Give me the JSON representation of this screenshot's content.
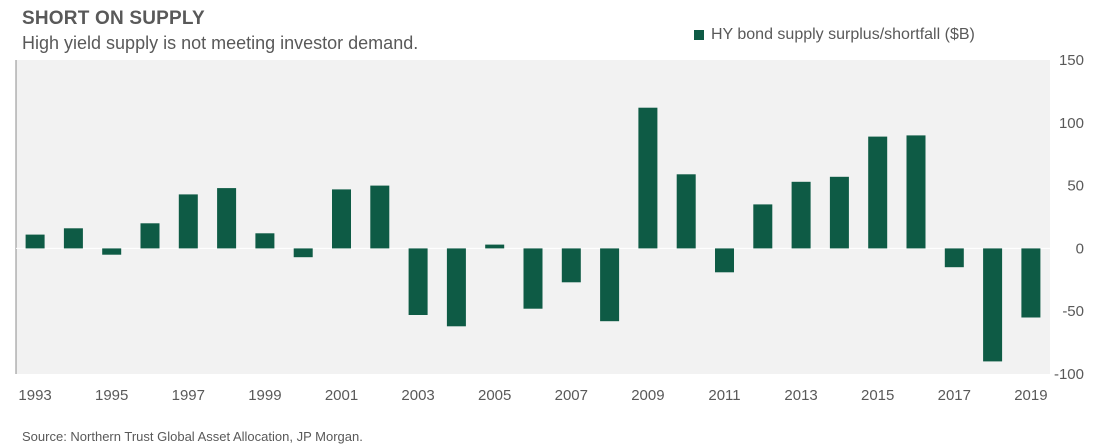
{
  "header": {
    "title": "SHORT ON SUPPLY",
    "subtitle": "High yield supply is not meeting investor demand."
  },
  "footer": {
    "source": "Source: Northern Trust Global Asset Allocation, JP Morgan."
  },
  "colors": {
    "bar": "#0e5b45",
    "plot_background": "#f2f2f2",
    "text": "#595959"
  },
  "chart_data": {
    "type": "bar",
    "title": "SHORT ON SUPPLY",
    "subtitle": "High yield supply is not meeting investor demand.",
    "xlabel": "",
    "ylabel": "",
    "categories": [
      "1993",
      "1994",
      "1995",
      "1996",
      "1997",
      "1998",
      "1999",
      "2000",
      "2001",
      "2002",
      "2003",
      "2004",
      "2005",
      "2006",
      "2007",
      "2008",
      "2009",
      "2010",
      "2011",
      "2012",
      "2013",
      "2014",
      "2015",
      "2016",
      "2017",
      "2018",
      "2019"
    ],
    "x_tick_labels": [
      "1993",
      "1995",
      "1997",
      "1999",
      "2001",
      "2003",
      "2005",
      "2007",
      "2009",
      "2011",
      "2013",
      "2015",
      "2017",
      "2019"
    ],
    "y_ticks": [
      150,
      100,
      50,
      0,
      -50,
      -100
    ],
    "ylim": [
      -100,
      150
    ],
    "y_axis_side": "right",
    "grid": false,
    "legend_position": "top-right",
    "series": [
      {
        "name": "HY bond supply surplus/shortfall ($B)",
        "values": [
          11,
          16,
          -5,
          20,
          43,
          48,
          12,
          -7,
          47,
          50,
          -53,
          -62,
          3,
          -48,
          -27,
          -58,
          112,
          59,
          -19,
          35,
          53,
          57,
          89,
          90,
          -15,
          -90,
          -55
        ]
      }
    ]
  }
}
